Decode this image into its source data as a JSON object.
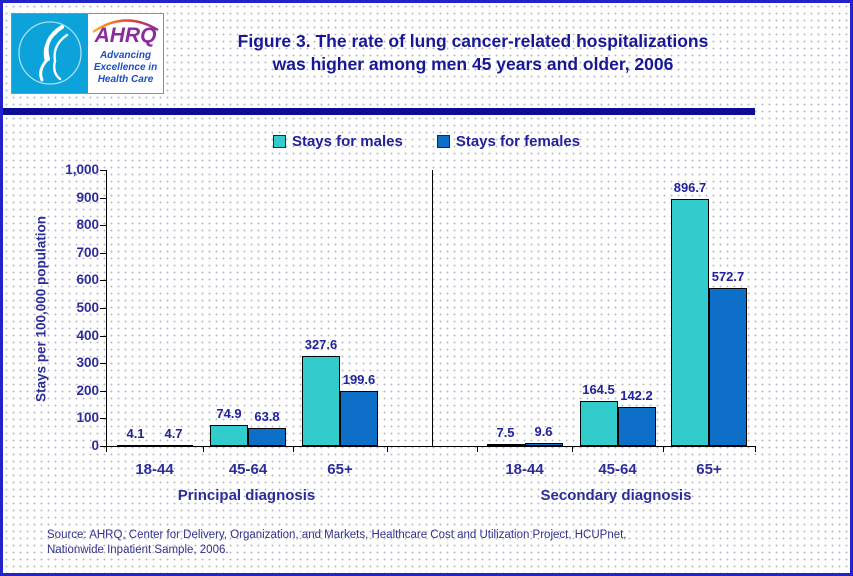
{
  "header": {
    "logo": {
      "ahrq_text": "AHRQ",
      "tagline": [
        "Advancing",
        "Excellence in",
        "Health Care"
      ]
    },
    "title_line1": "Figure 3. The rate of lung cancer-related hospitalizations",
    "title_line2": "was higher among men 45 years and older, 2006"
  },
  "legend": [
    {
      "label": "Stays for males",
      "color": "#33cccc"
    },
    {
      "label": "Stays for females",
      "color": "#0e6fc9"
    }
  ],
  "chart_data": {
    "type": "bar",
    "title": "Figure 3. The rate of lung cancer-related hospitalizations was higher among men 45 years and older, 2006",
    "ylabel": "Stays per 100,000 population",
    "xlabel": "",
    "ylim": [
      0,
      1000
    ],
    "ytick_interval": 100,
    "ytick_labels": [
      "0",
      "100",
      "200",
      "300",
      "400",
      "500",
      "600",
      "700",
      "800",
      "900",
      "1,000"
    ],
    "grid": false,
    "legend_position": "top",
    "series_names": [
      "Stays for males",
      "Stays for females"
    ],
    "series_colors": {
      "Stays for males": "#33cccc",
      "Stays for females": "#0e6fc9"
    },
    "groups": [
      {
        "label": "Principal diagnosis",
        "categories": [
          "18-44",
          "45-64",
          "65+"
        ],
        "series": [
          {
            "name": "Stays for males",
            "values": [
              4.1,
              74.9,
              327.6
            ]
          },
          {
            "name": "Stays for females",
            "values": [
              4.7,
              63.8,
              199.6
            ]
          }
        ]
      },
      {
        "label": "Secondary diagnosis",
        "categories": [
          "18-44",
          "45-64",
          "65+"
        ],
        "series": [
          {
            "name": "Stays for males",
            "values": [
              7.5,
              164.5,
              896.7
            ]
          },
          {
            "name": "Stays for females",
            "values": [
              9.6,
              142.2,
              572.7
            ]
          }
        ]
      }
    ]
  },
  "source": {
    "line1": "Source: AHRQ, Center for Delivery, Organization, and Markets, Healthcare Cost and Utilization Project, HCUPnet,",
    "line2": "Nationwide Inpatient Sample, 2006."
  }
}
